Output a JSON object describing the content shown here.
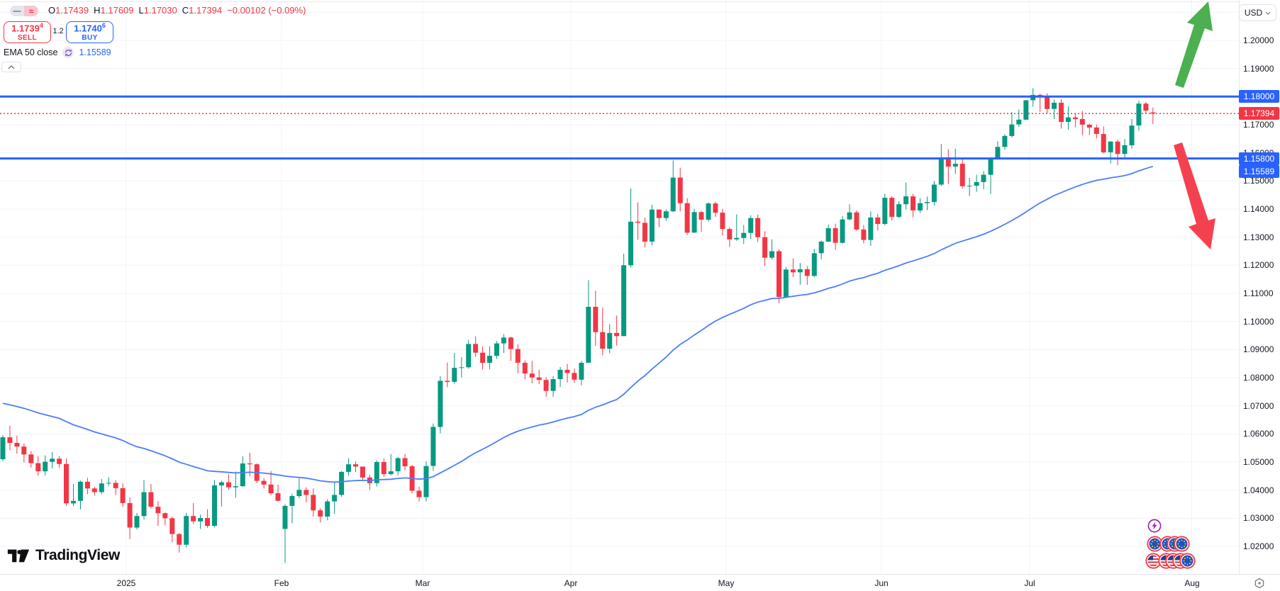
{
  "header": {
    "legend_toggle_dash": "—",
    "legend_toggle_wave": "≈",
    "ohlc": {
      "o_label": "O",
      "o": "1.17439",
      "h_label": "H",
      "h": "1.17609",
      "l_label": "L",
      "l": "1.17030",
      "c_label": "C",
      "c": "1.17394",
      "change": "−0.00102 (−0.09%)"
    },
    "sell": {
      "price": "1.1739",
      "sup": "4",
      "label": "SELL"
    },
    "spread": "1.2",
    "buy": {
      "price": "1.1740",
      "sup": "6",
      "label": "BUY"
    },
    "ema_legend": {
      "name": "EMA 50 close",
      "value": "1.15589"
    }
  },
  "axis": {
    "currency": "USD",
    "price_ticks": [
      "1.20000",
      "1.19000",
      "1.18000",
      "1.17000",
      "1.16000",
      "1.15000",
      "1.14000",
      "1.13000",
      "1.12000",
      "1.11000",
      "1.10000",
      "1.09000",
      "1.08000",
      "1.07000",
      "1.06000",
      "1.05000",
      "1.04000",
      "1.03000",
      "1.02000"
    ]
  },
  "footer": {
    "logo_text": "TradingView"
  },
  "drawings": {
    "up_arrow_color": "#4caf50",
    "down_arrow_color": "#f5414f"
  },
  "events": {
    "bolt_color": "#9c27b0",
    "rows": [
      [
        "eu",
        "eu",
        "eu",
        "eu"
      ],
      [
        "us",
        "us",
        "us",
        "us",
        "eu"
      ]
    ]
  },
  "chart_data": {
    "type": "candlestick",
    "up_color": "#089981",
    "down_color": "#f23645",
    "grid_color": "#f0f3fa",
    "ylim": [
      1.01,
      1.2144
    ],
    "months": [
      {
        "label": "2025",
        "bar": 18
      },
      {
        "label": "Feb",
        "bar": 40
      },
      {
        "label": "Mar",
        "bar": 60
      },
      {
        "label": "Apr",
        "bar": 81
      },
      {
        "label": "May",
        "bar": 103
      },
      {
        "label": "Jun",
        "bar": 125
      },
      {
        "label": "Jul",
        "bar": 146
      },
      {
        "label": "Aug",
        "bar": 169
      }
    ],
    "levels": [
      {
        "price": 1.18,
        "label": "1.18000",
        "color": "#2962ff"
      },
      {
        "price": 1.158,
        "label": "1.15800",
        "color": "#2962ff"
      }
    ],
    "last_price": {
      "price": 1.17394,
      "label": "1.17394",
      "color": "#f23645"
    },
    "ema": {
      "period": 50,
      "value": 1.15589,
      "label": "1.15589",
      "seed": 1.0714,
      "color": "#4a7dff",
      "tag_color": "#2962ff"
    },
    "candles": [
      [
        1.051,
        1.0595,
        1.0503,
        1.0588
      ],
      [
        1.0588,
        1.0629,
        1.0542,
        1.0568
      ],
      [
        1.0568,
        1.0594,
        1.053,
        1.0555
      ],
      [
        1.0555,
        1.0566,
        1.0499,
        1.0527
      ],
      [
        1.0527,
        1.0539,
        1.048,
        1.0496
      ],
      [
        1.0496,
        1.0521,
        1.0452,
        1.0467
      ],
      [
        1.0467,
        1.0524,
        1.0453,
        1.0501
      ],
      [
        1.0501,
        1.0536,
        1.0477,
        1.0512
      ],
      [
        1.0512,
        1.0521,
        1.048,
        1.0493
      ],
      [
        1.0493,
        1.0513,
        1.0344,
        1.0353
      ],
      [
        1.0353,
        1.0422,
        1.0343,
        1.0362
      ],
      [
        1.0362,
        1.0434,
        1.0332,
        1.043
      ],
      [
        1.043,
        1.0444,
        1.0386,
        1.0406
      ],
      [
        1.0406,
        1.0412,
        1.038,
        1.0393
      ],
      [
        1.0393,
        1.044,
        1.0385,
        1.0424
      ],
      [
        1.0424,
        1.0446,
        1.0415,
        1.0426
      ],
      [
        1.0426,
        1.0436,
        1.0383,
        1.0407
      ],
      [
        1.0407,
        1.0425,
        1.034,
        1.0354
      ],
      [
        1.0354,
        1.0374,
        1.0226,
        1.0267
      ],
      [
        1.0267,
        1.0319,
        1.026,
        1.0308
      ],
      [
        1.0308,
        1.0437,
        1.0295,
        1.0393
      ],
      [
        1.0393,
        1.0422,
        1.0335,
        1.0341
      ],
      [
        1.0341,
        1.036,
        1.0273,
        1.0318
      ],
      [
        1.0318,
        1.0321,
        1.0275,
        1.03
      ],
      [
        1.03,
        1.0306,
        1.0215,
        1.0244
      ],
      [
        1.0244,
        1.0247,
        1.0178,
        1.0206
      ],
      [
        1.0206,
        1.0319,
        1.0196,
        1.0308
      ],
      [
        1.0308,
        1.0354,
        1.028,
        1.0289
      ],
      [
        1.0289,
        1.0313,
        1.0262,
        1.0301
      ],
      [
        1.0301,
        1.0332,
        1.0266,
        1.0273
      ],
      [
        1.0273,
        1.0435,
        1.0267,
        1.0417
      ],
      [
        1.0417,
        1.0434,
        1.0342,
        1.0428
      ],
      [
        1.0428,
        1.0457,
        1.0401,
        1.041
      ],
      [
        1.041,
        1.0466,
        1.0373,
        1.0414
      ],
      [
        1.0414,
        1.0521,
        1.0412,
        1.0495
      ],
      [
        1.0495,
        1.0533,
        1.0449,
        1.0492
      ],
      [
        1.0492,
        1.0495,
        1.0425,
        1.0433
      ],
      [
        1.0433,
        1.0443,
        1.0406,
        1.042
      ],
      [
        1.042,
        1.0468,
        1.0382,
        1.0389
      ],
      [
        1.0389,
        1.042,
        1.036,
        1.0362
      ],
      [
        1.0262,
        1.035,
        1.0141,
        1.0344
      ],
      [
        1.0344,
        1.0387,
        1.0282,
        1.0379
      ],
      [
        1.0379,
        1.0442,
        1.0372,
        1.0401
      ],
      [
        1.0401,
        1.041,
        1.0357,
        1.0383
      ],
      [
        1.0383,
        1.0406,
        1.0306,
        1.0328
      ],
      [
        1.0328,
        1.0335,
        1.0285,
        1.0306
      ],
      [
        1.0306,
        1.0368,
        1.0293,
        1.036
      ],
      [
        1.036,
        1.0429,
        1.0316,
        1.0383
      ],
      [
        1.0383,
        1.0468,
        1.0376,
        1.0465
      ],
      [
        1.0465,
        1.0514,
        1.0452,
        1.0492
      ],
      [
        1.0492,
        1.0502,
        1.0464,
        1.0484
      ],
      [
        1.0484,
        1.0484,
        1.0436,
        1.0445
      ],
      [
        1.0445,
        1.0454,
        1.0401,
        1.0425
      ],
      [
        1.0425,
        1.0506,
        1.0413,
        1.05
      ],
      [
        1.05,
        1.0512,
        1.0447,
        1.0457
      ],
      [
        1.0457,
        1.0528,
        1.0453,
        1.0467
      ],
      [
        1.0467,
        1.0518,
        1.0453,
        1.0514
      ],
      [
        1.0514,
        1.0529,
        1.047,
        1.0485
      ],
      [
        1.0485,
        1.049,
        1.0389,
        1.0398
      ],
      [
        1.0398,
        1.0412,
        1.036,
        1.0375
      ],
      [
        1.0375,
        1.0503,
        1.036,
        1.0486
      ],
      [
        1.0486,
        1.0637,
        1.0469,
        1.0625
      ],
      [
        1.0625,
        1.0806,
        1.0602,
        1.0789
      ],
      [
        1.0789,
        1.0854,
        1.0766,
        1.0785
      ],
      [
        1.0785,
        1.0888,
        1.0778,
        1.0835
      ],
      [
        1.0835,
        1.0873,
        1.0801,
        1.0837
      ],
      [
        1.0837,
        1.0935,
        1.0832,
        1.092
      ],
      [
        1.092,
        1.0947,
        1.0874,
        1.0889
      ],
      [
        1.0889,
        1.0911,
        1.0829,
        1.0853
      ],
      [
        1.0853,
        1.0912,
        1.083,
        1.0878
      ],
      [
        1.0878,
        1.093,
        1.0867,
        1.0922
      ],
      [
        1.0922,
        1.0955,
        1.0888,
        1.0943
      ],
      [
        1.0943,
        1.0946,
        1.086,
        1.0902
      ],
      [
        1.0902,
        1.0918,
        1.0815,
        1.0853
      ],
      [
        1.0853,
        1.0862,
        1.0795,
        1.0815
      ],
      [
        1.0815,
        1.086,
        1.078,
        1.0801
      ],
      [
        1.0801,
        1.0829,
        1.0777,
        1.0792
      ],
      [
        1.0792,
        1.0802,
        1.0733,
        1.0753
      ],
      [
        1.0753,
        1.0805,
        1.0732,
        1.0795
      ],
      [
        1.0795,
        1.0838,
        1.0767,
        1.0828
      ],
      [
        1.0828,
        1.0849,
        1.0783,
        1.0817
      ],
      [
        1.0817,
        1.0832,
        1.0782,
        1.0793
      ],
      [
        1.0793,
        1.086,
        1.0773,
        1.0853
      ],
      [
        1.0853,
        1.1147,
        1.0853,
        1.1052
      ],
      [
        1.1052,
        1.1109,
        1.0913,
        1.0962
      ],
      [
        1.0962,
        1.105,
        1.088,
        1.0903
      ],
      [
        1.0903,
        1.099,
        1.0887,
        1.0959
      ],
      [
        1.0959,
        1.1021,
        1.0914,
        1.0948
      ],
      [
        1.0948,
        1.1241,
        1.0948,
        1.12
      ],
      [
        1.12,
        1.1473,
        1.1192,
        1.1355
      ],
      [
        1.1355,
        1.1424,
        1.1291,
        1.1351
      ],
      [
        1.1351,
        1.1369,
        1.1264,
        1.1284
      ],
      [
        1.1284,
        1.1415,
        1.1271,
        1.1398
      ],
      [
        1.1398,
        1.1399,
        1.1336,
        1.1368
      ],
      [
        1.1368,
        1.1399,
        1.1358,
        1.1392
      ],
      [
        1.1392,
        1.1573,
        1.1389,
        1.1512
      ],
      [
        1.1512,
        1.1547,
        1.1392,
        1.1421
      ],
      [
        1.1421,
        1.1439,
        1.1308,
        1.1316
      ],
      [
        1.1316,
        1.1401,
        1.1316,
        1.1389
      ],
      [
        1.1389,
        1.1394,
        1.1319,
        1.1362
      ],
      [
        1.1362,
        1.1424,
        1.1355,
        1.142
      ],
      [
        1.142,
        1.1427,
        1.1372,
        1.1387
      ],
      [
        1.1387,
        1.1401,
        1.1306,
        1.1329
      ],
      [
        1.1329,
        1.1335,
        1.1265,
        1.1292
      ],
      [
        1.1292,
        1.1381,
        1.1287,
        1.1297
      ],
      [
        1.1297,
        1.1343,
        1.1276,
        1.1315
      ],
      [
        1.1315,
        1.1378,
        1.1293,
        1.1368
      ],
      [
        1.1368,
        1.138,
        1.1283,
        1.13
      ],
      [
        1.13,
        1.1321,
        1.1197,
        1.1227
      ],
      [
        1.1227,
        1.1292,
        1.122,
        1.125
      ],
      [
        1.125,
        1.1257,
        1.1065,
        1.1087
      ],
      [
        1.1087,
        1.1194,
        1.1083,
        1.1185
      ],
      [
        1.1185,
        1.1224,
        1.1158,
        1.1175
      ],
      [
        1.1175,
        1.1208,
        1.1131,
        1.1186
      ],
      [
        1.1186,
        1.1197,
        1.113,
        1.1162
      ],
      [
        1.1162,
        1.1259,
        1.1158,
        1.1243
      ],
      [
        1.1243,
        1.1288,
        1.1221,
        1.1284
      ],
      [
        1.1284,
        1.1345,
        1.1283,
        1.1332
      ],
      [
        1.1332,
        1.1348,
        1.1255,
        1.128
      ],
      [
        1.128,
        1.1375,
        1.1277,
        1.1363
      ],
      [
        1.1363,
        1.1417,
        1.136,
        1.1388
      ],
      [
        1.1388,
        1.1395,
        1.1322,
        1.1327
      ],
      [
        1.1327,
        1.1343,
        1.1278,
        1.129
      ],
      [
        1.129,
        1.1392,
        1.1269,
        1.137
      ],
      [
        1.137,
        1.1383,
        1.1323,
        1.1347
      ],
      [
        1.1347,
        1.1454,
        1.1342,
        1.144
      ],
      [
        1.144,
        1.1445,
        1.1359,
        1.1372
      ],
      [
        1.1372,
        1.1427,
        1.1367,
        1.1417
      ],
      [
        1.1417,
        1.1495,
        1.1399,
        1.1445
      ],
      [
        1.1445,
        1.1454,
        1.1371,
        1.1395
      ],
      [
        1.1395,
        1.1439,
        1.1386,
        1.1421
      ],
      [
        1.1421,
        1.1444,
        1.1396,
        1.1425
      ],
      [
        1.1425,
        1.15,
        1.1413,
        1.1487
      ],
      [
        1.1487,
        1.1631,
        1.1482,
        1.1584
      ],
      [
        1.1584,
        1.1613,
        1.1489,
        1.1551
      ],
      [
        1.1551,
        1.1615,
        1.1525,
        1.1561
      ],
      [
        1.1561,
        1.158,
        1.1472,
        1.1481
      ],
      [
        1.1481,
        1.1511,
        1.1446,
        1.1483
      ],
      [
        1.1483,
        1.1522,
        1.1461,
        1.1496
      ],
      [
        1.1496,
        1.1535,
        1.147,
        1.1522
      ],
      [
        1.1522,
        1.1584,
        1.1454,
        1.158
      ],
      [
        1.158,
        1.1641,
        1.1576,
        1.1621
      ],
      [
        1.1621,
        1.1666,
        1.1611,
        1.166
      ],
      [
        1.166,
        1.1745,
        1.1654,
        1.1701
      ],
      [
        1.1701,
        1.1754,
        1.1692,
        1.1718
      ],
      [
        1.1718,
        1.1788,
        1.1717,
        1.1787
      ],
      [
        1.1787,
        1.183,
        1.1764,
        1.1806
      ],
      [
        1.1806,
        1.181,
        1.1746,
        1.18
      ],
      [
        1.18,
        1.1811,
        1.1739,
        1.1756
      ],
      [
        1.1756,
        1.179,
        1.172,
        1.1778
      ],
      [
        1.1778,
        1.179,
        1.1686,
        1.171
      ],
      [
        1.171,
        1.1766,
        1.1682,
        1.1726
      ],
      [
        1.1726,
        1.1741,
        1.1691,
        1.172
      ],
      [
        1.172,
        1.1749,
        1.1663,
        1.17
      ],
      [
        1.17,
        1.1704,
        1.1664,
        1.169
      ],
      [
        1.169,
        1.1701,
        1.1651,
        1.1667
      ],
      [
        1.1667,
        1.1694,
        1.1598,
        1.1602
      ],
      [
        1.1602,
        1.1642,
        1.1562,
        1.164
      ],
      [
        1.164,
        1.1647,
        1.1556,
        1.1596
      ],
      [
        1.1596,
        1.1649,
        1.1577,
        1.1627
      ],
      [
        1.1627,
        1.172,
        1.1615,
        1.1697
      ],
      [
        1.1697,
        1.1786,
        1.1678,
        1.1775
      ],
      [
        1.1775,
        1.1781,
        1.1738,
        1.175
      ],
      [
        1.17439,
        1.17609,
        1.1703,
        1.17394
      ]
    ]
  }
}
